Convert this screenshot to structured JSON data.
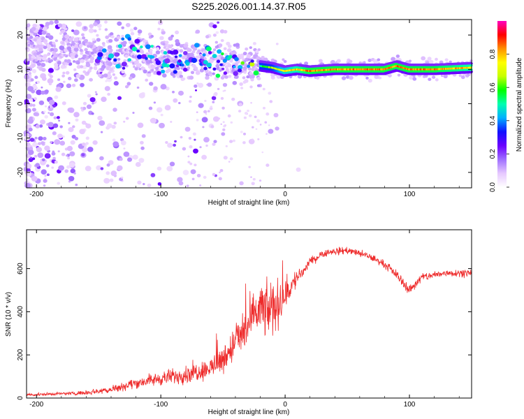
{
  "title": "S225.2026.001.14.37.R05",
  "chart_data": [
    {
      "type": "heatmap",
      "xlabel": "Height of straight line (km)",
      "ylabel": "Frequency (Hz)",
      "xlim": [
        -208,
        150
      ],
      "ylim": [
        -24.5,
        24.5
      ],
      "xticks": [
        -200,
        -100,
        0,
        100
      ],
      "yticks": [
        -20,
        -10,
        0,
        10,
        20
      ],
      "colorbar": {
        "label": "Normalized spectral amplitude",
        "range": [
          0,
          1
        ],
        "ticks": [
          "0.0",
          "0.2",
          "0.4",
          "0.6",
          "0.8"
        ],
        "colormap": [
          "#ffffff",
          "#e6c8ff",
          "#a070ff",
          "#6a00ff",
          "#1010ff",
          "#00b0ff",
          "#00ffb0",
          "#00ff00",
          "#c8ff00",
          "#ffff00",
          "#ff9000",
          "#ff0000",
          "#ff00c0"
        ]
      },
      "ridge": {
        "x": [
          -140,
          -120,
          -100,
          -80,
          -60,
          -40,
          -20,
          -10,
          0,
          10,
          20,
          40,
          60,
          80,
          90,
          100,
          120,
          150
        ],
        "y": [
          15,
          14,
          13,
          12.5,
          13,
          12,
          11,
          10.5,
          9.5,
          10,
          9.5,
          10,
          10,
          10,
          11,
          10,
          10,
          10.5
        ],
        "peak_amplitude": [
          0.25,
          0.3,
          0.3,
          0.3,
          0.35,
          0.4,
          0.55,
          0.7,
          0.8,
          0.85,
          0.9,
          0.9,
          0.9,
          0.9,
          0.9,
          0.9,
          0.9,
          0.85
        ]
      }
    },
    {
      "type": "line",
      "xlabel": "Height of straight line (km)",
      "ylabel": "SNR (10 * v/v)",
      "xlim": [
        -208,
        150
      ],
      "ylim": [
        0,
        780
      ],
      "xticks": [
        -200,
        -100,
        0,
        100
      ],
      "yticks": [
        0,
        200,
        400,
        600
      ],
      "series": [
        {
          "color": "#ee2a2a",
          "x": [
            -208,
            -180,
            -160,
            -140,
            -120,
            -100,
            -80,
            -60,
            -50,
            -40,
            -30,
            -20,
            -15,
            -10,
            -5,
            0,
            5,
            10,
            15,
            20,
            30,
            40,
            50,
            60,
            70,
            80,
            90,
            100,
            110,
            120,
            130,
            150
          ],
          "y": [
            15,
            20,
            25,
            40,
            70,
            90,
            110,
            140,
            180,
            260,
            330,
            420,
            400,
            420,
            440,
            470,
            520,
            560,
            590,
            630,
            670,
            680,
            685,
            670,
            650,
            620,
            570,
            500,
            560,
            570,
            580,
            580
          ],
          "noise": [
            10,
            10,
            15,
            25,
            35,
            45,
            60,
            70,
            90,
            120,
            150,
            170,
            180,
            200,
            150,
            100,
            80,
            60,
            40,
            30,
            25,
            25,
            25,
            25,
            25,
            25,
            30,
            35,
            30,
            25,
            25,
            25
          ]
        }
      ]
    }
  ]
}
